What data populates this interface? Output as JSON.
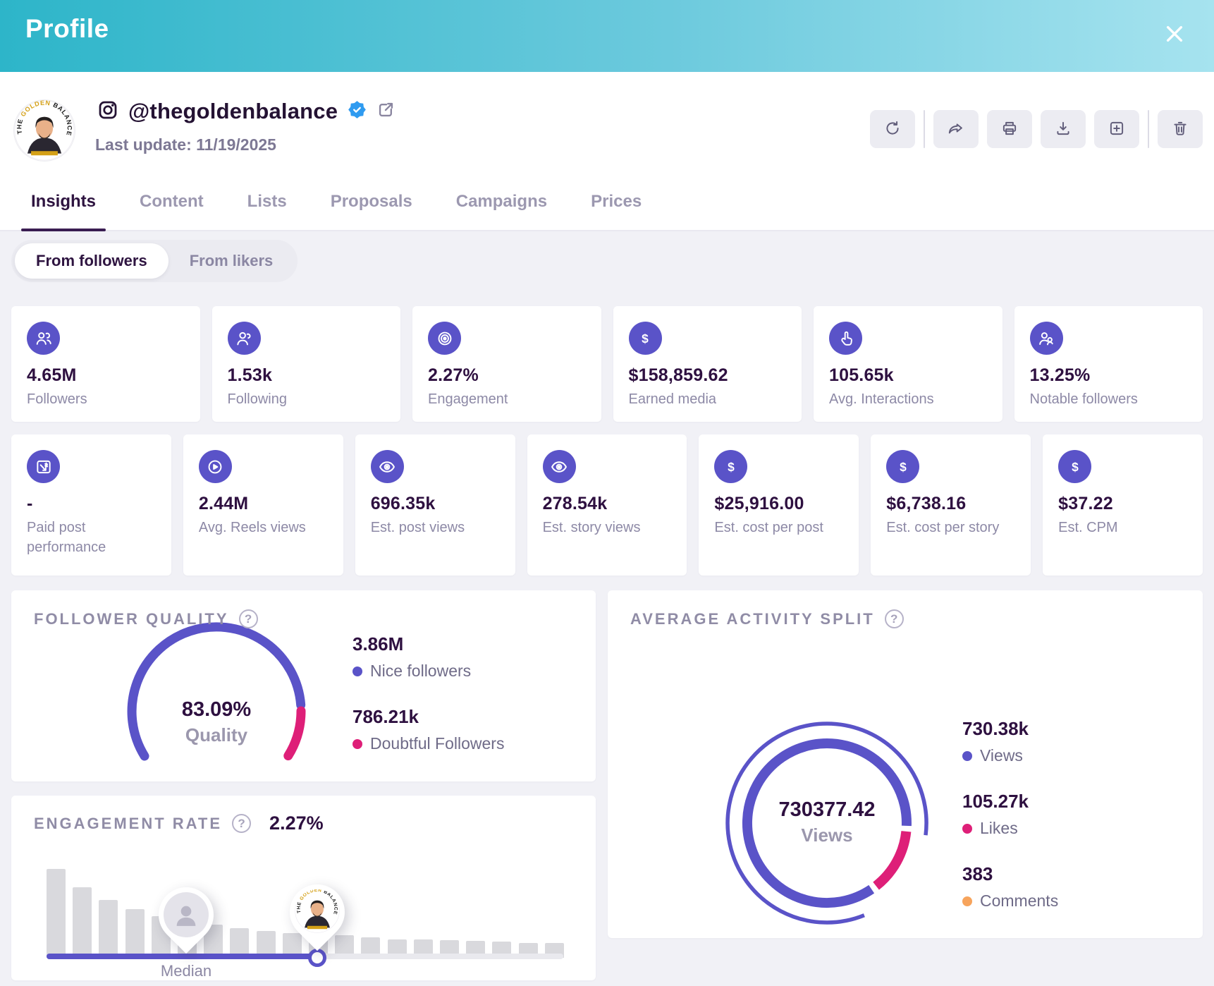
{
  "header": {
    "title": "Profile"
  },
  "profile": {
    "network": "instagram",
    "handle": "@thegoldenbalance",
    "verified": true,
    "last_update": "Last update: 11/19/2025"
  },
  "toolbar": {
    "buttons": [
      {
        "icon": "refresh-icon",
        "sep_after": true
      },
      {
        "icon": "share-icon",
        "sep_after": false
      },
      {
        "icon": "print-icon",
        "sep_after": false
      },
      {
        "icon": "download-icon",
        "sep_after": false
      },
      {
        "icon": "add-icon",
        "sep_after": true
      },
      {
        "icon": "trash-icon",
        "sep_after": false
      }
    ]
  },
  "tabs": [
    {
      "label": "Insights",
      "active": true
    },
    {
      "label": "Content",
      "active": false
    },
    {
      "label": "Lists",
      "active": false
    },
    {
      "label": "Proposals",
      "active": false
    },
    {
      "label": "Campaigns",
      "active": false
    },
    {
      "label": "Prices",
      "active": false
    }
  ],
  "source_toggle": [
    {
      "label": "From followers",
      "active": true
    },
    {
      "label": "From likers",
      "active": false
    }
  ],
  "stats_row1": [
    {
      "icon": "followers-icon",
      "value": "4.65M",
      "label": "Followers"
    },
    {
      "icon": "following-icon",
      "value": "1.53k",
      "label": "Following"
    },
    {
      "icon": "engagement-target-icon",
      "value": "2.27%",
      "label": "Engagement"
    },
    {
      "icon": "dollar-icon",
      "value": "$158,859.62",
      "label": "Earned media"
    },
    {
      "icon": "interactions-tap-icon",
      "value": "105.65k",
      "label": "Avg. Interactions"
    },
    {
      "icon": "notable-followers-icon",
      "value": "13.25%",
      "label": "Notable followers"
    }
  ],
  "stats_row2": [
    {
      "icon": "paid-post-icon",
      "value": "-",
      "label": "Paid post performance"
    },
    {
      "icon": "reels-play-icon",
      "value": "2.44M",
      "label": "Avg. Reels views"
    },
    {
      "icon": "eye-icon",
      "value": "696.35k",
      "label": "Est. post views"
    },
    {
      "icon": "eye-icon",
      "value": "278.54k",
      "label": "Est. story views"
    },
    {
      "icon": "dollar-icon",
      "value": "$25,916.00",
      "label": "Est. cost per post"
    },
    {
      "icon": "dollar-icon",
      "value": "$6,738.16",
      "label": "Est. cost per story"
    },
    {
      "icon": "dollar-icon",
      "value": "$37.22",
      "label": "Est. CPM"
    }
  ],
  "follower_quality": {
    "title": "FOLLOWER QUALITY",
    "gauge_value": "83.09%",
    "gauge_label": "Quality",
    "legend": [
      {
        "value": "3.86M",
        "label": "Nice followers",
        "color": "#5a53c8"
      },
      {
        "value": "786.21k",
        "label": "Doubtful Followers",
        "color": "#de1f78"
      }
    ]
  },
  "engagement_rate": {
    "title": "ENGAGEMENT RATE",
    "value": "2.27%",
    "median_label": "Median"
  },
  "activity_split": {
    "title": "AVERAGE ACTIVITY SPLIT",
    "center_value": "730377.42",
    "center_label": "Views",
    "legend": [
      {
        "value": "730.38k",
        "label": "Views",
        "color": "#5a53c8"
      },
      {
        "value": "105.27k",
        "label": "Likes",
        "color": "#de1f78"
      },
      {
        "value": "383",
        "label": "Comments",
        "color": "#f7a45c"
      }
    ]
  },
  "colors": {
    "accent_purple": "#5a53c8",
    "pink": "#de1f78",
    "orange": "#f7a45c",
    "header_gradient_left": "#2db5c9",
    "header_gradient_right": "#a6e3ef",
    "verified_blue": "#2f9bf0"
  },
  "chart_data": [
    {
      "type": "gauge",
      "title": "FOLLOWER QUALITY",
      "value_pct": 83.09,
      "center_label": "Quality",
      "arc_span_deg": 244,
      "segments": [
        {
          "name": "Nice followers",
          "value": "3.86M",
          "color": "#5a53c8"
        },
        {
          "name": "Doubtful Followers",
          "value": "786.21k",
          "color": "#de1f78"
        }
      ]
    },
    {
      "type": "bar",
      "title": "ENGAGEMENT RATE",
      "value": "2.27%",
      "values": [
        100,
        79,
        65,
        55,
        47,
        40,
        37,
        33,
        30,
        28,
        26,
        25,
        23,
        21,
        21,
        20,
        19,
        18,
        17,
        17
      ],
      "bar_color": "#d9d9dd",
      "markers": {
        "median_bin": 6,
        "median_label": "Median",
        "profile_bin": 11
      }
    },
    {
      "type": "donut",
      "title": "AVERAGE ACTIVITY SPLIT",
      "center_value": "730377.42",
      "center_label": "Views",
      "segments": [
        {
          "name": "Views",
          "value": "730.38k",
          "color": "#5a53c8"
        },
        {
          "name": "Likes",
          "value": "105.27k",
          "color": "#de1f78"
        },
        {
          "name": "Comments",
          "value": "383",
          "color": "#f7a45c"
        }
      ]
    }
  ]
}
